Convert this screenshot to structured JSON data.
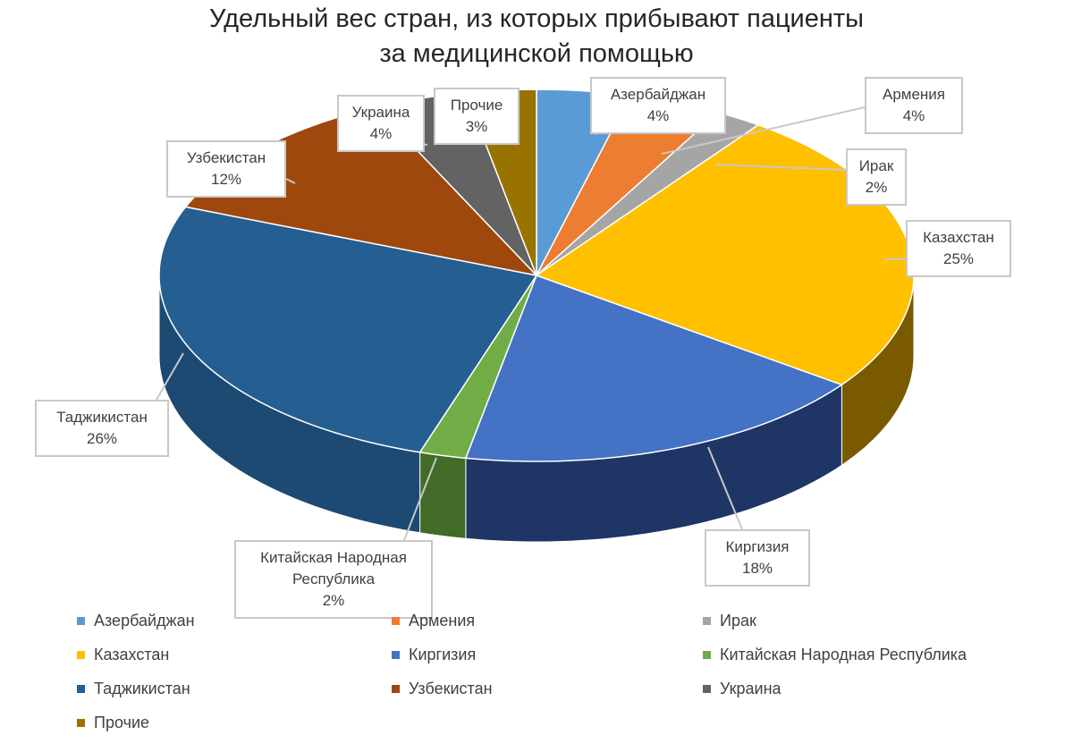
{
  "chart_data": {
    "type": "pie",
    "title_lines": [
      "Удельный вес стран, из которых прибывают пациенты",
      "за медицинской помощью"
    ],
    "slices": [
      {
        "label": "Азербайджан",
        "value": 4,
        "value_label": "4%",
        "color": "#5b9bd5",
        "side_color": "#3f74a8"
      },
      {
        "label": "Армения",
        "value": 4,
        "value_label": "4%",
        "color": "#ed7d31",
        "side_color": "#b35a1c"
      },
      {
        "label": "Ирак",
        "value": 2,
        "value_label": "2%",
        "color": "#a5a5a5",
        "side_color": "#7a7a7a"
      },
      {
        "label": "Казахстан",
        "value": 25,
        "value_label": "25%",
        "color": "#ffc000",
        "side_color": "#7a5a00"
      },
      {
        "label": "Киргизия",
        "value": 18,
        "value_label": "18%",
        "color": "#4472c4",
        "side_color": "#1f3566"
      },
      {
        "label": "Китайская Народная Республика",
        "value": 2,
        "value_label": "2%",
        "color": "#70ad47",
        "side_color": "#426b27"
      },
      {
        "label": "Таджикистан",
        "value": 26,
        "value_label": "26%",
        "color": "#255e91",
        "side_color": "#1d4a73"
      },
      {
        "label": "Узбекистан",
        "value": 12,
        "value_label": "12%",
        "color": "#9e480e",
        "side_color": "#6e3008"
      },
      {
        "label": "Украина",
        "value": 4,
        "value_label": "4%",
        "color": "#636363",
        "side_color": "#434343"
      },
      {
        "label": "Прочие",
        "value": 3,
        "value_label": "3%",
        "color": "#997300",
        "side_color": "#6b5000"
      }
    ],
    "legend_position": "bottom",
    "style": "3d-pie",
    "callout_labels": [
      {
        "lines": [
          "Азербайджан",
          "4%"
        ]
      },
      {
        "lines": [
          "Армения",
          "4%"
        ]
      },
      {
        "lines": [
          "Ирак",
          "2%"
        ]
      },
      {
        "lines": [
          "Казахстан",
          "25%"
        ]
      },
      {
        "lines": [
          "Киргизия",
          "18%"
        ]
      },
      {
        "lines": [
          "Китайская Народная",
          "Республика",
          "2%"
        ]
      },
      {
        "lines": [
          "Таджикистан",
          "26%"
        ]
      },
      {
        "lines": [
          "Узбекистан",
          "12%"
        ]
      },
      {
        "lines": [
          "Украина",
          "4%"
        ]
      },
      {
        "lines": [
          "Прочие",
          "3%"
        ]
      }
    ]
  }
}
